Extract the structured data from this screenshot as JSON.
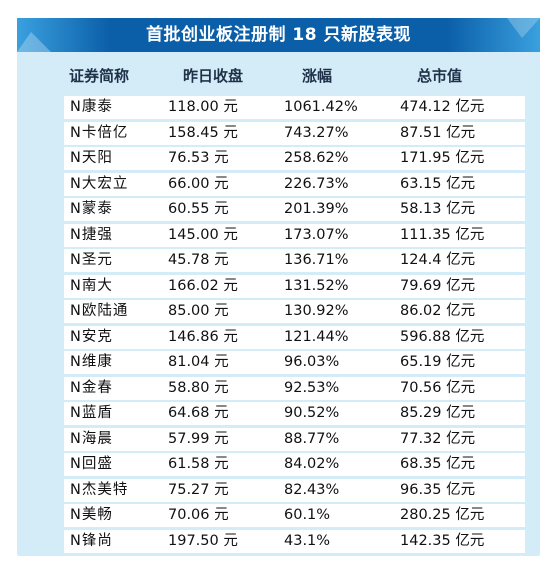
{
  "title": "首批创业板注册制 18 只新股表现",
  "columns": [
    "证券简称",
    "昨日收盘",
    "涨幅",
    "总市值"
  ],
  "rows": [
    {
      "name": "N康泰",
      "close": "118.00 元",
      "rise": "1061.42%",
      "cap": "474.12 亿元"
    },
    {
      "name": "N卡倍亿",
      "close": "158.45 元",
      "rise": "743.27%",
      "cap": "87.51 亿元"
    },
    {
      "name": "N天阳",
      "close": "76.53 元",
      "rise": "258.62%",
      "cap": "171.95 亿元"
    },
    {
      "name": "N大宏立",
      "close": "66.00 元",
      "rise": "226.73%",
      "cap": "63.15 亿元"
    },
    {
      "name": "N蒙泰",
      "close": "60.55 元",
      "rise": "201.39%",
      "cap": "58.13 亿元"
    },
    {
      "name": "N捷强",
      "close": "145.00 元",
      "rise": "173.07%",
      "cap": "111.35 亿元"
    },
    {
      "name": "N圣元",
      "close": "45.78 元",
      "rise": "136.71%",
      "cap": "124.4 亿元"
    },
    {
      "name": "N南大",
      "close": "166.02 元",
      "rise": "131.52%",
      "cap": "79.69 亿元"
    },
    {
      "name": "N欧陆通",
      "close": "85.00 元",
      "rise": "130.92%",
      "cap": "86.02 亿元"
    },
    {
      "name": "N安克",
      "close": "146.86 元",
      "rise": "121.44%",
      "cap": "596.88 亿元"
    },
    {
      "name": "N维康",
      "close": "81.04 元",
      "rise": "96.03%",
      "cap": "65.19 亿元"
    },
    {
      "name": "N金春",
      "close": "58.80 元",
      "rise": "92.53%",
      "cap": "70.56 亿元"
    },
    {
      "name": "N蓝盾",
      "close": "64.68 元",
      "rise": "90.52%",
      "cap": "85.29 亿元"
    },
    {
      "name": "N海晨",
      "close": "57.99 元",
      "rise": "88.77%",
      "cap": "77.32 亿元"
    },
    {
      "name": "N回盛",
      "close": "61.58 元",
      "rise": "84.02%",
      "cap": "68.35 亿元"
    },
    {
      "name": "N杰美特",
      "close": "75.27 元",
      "rise": "82.43%",
      "cap": "96.35 亿元"
    },
    {
      "name": "N美畅",
      "close": "70.06 元",
      "rise": "60.1%",
      "cap": "280.25 亿元"
    },
    {
      "name": "N锋尚",
      "close": "197.50 元",
      "rise": "43.1%",
      "cap": "142.35 亿元"
    }
  ],
  "colors": {
    "banner_dark": "#0b5ea8",
    "banner_light": "#3aa0de",
    "panel": "#d4ecf8",
    "row_bg": "#ffffff",
    "header_text": "#1f3148"
  }
}
